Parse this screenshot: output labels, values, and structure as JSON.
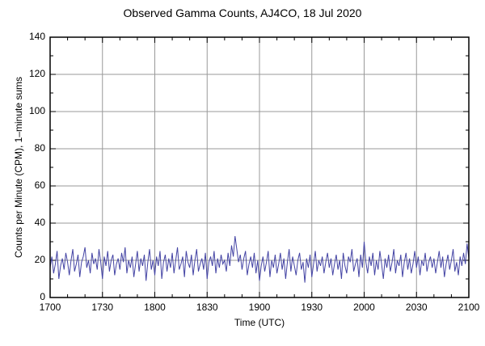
{
  "chart_data": {
    "type": "line",
    "title": "Observed Gamma Counts, AJ4CO, 18 Jul 2020",
    "xlabel": "Time (UTC)",
    "ylabel": "Counts per Minute (CPM), 1–minute sums",
    "xtick_labels": [
      "1700",
      "1730",
      "1800",
      "1830",
      "1900",
      "1930",
      "2000",
      "2030",
      "2100"
    ],
    "xtick_minutes": [
      0,
      30,
      60,
      90,
      120,
      150,
      180,
      210,
      240
    ],
    "ytick_values": [
      0,
      20,
      40,
      60,
      80,
      100,
      120,
      140
    ],
    "ylim": [
      0,
      140
    ],
    "xlim_minutes": [
      0,
      240
    ],
    "x_step_minutes": 1,
    "grid": true,
    "legend": "none",
    "line_color": "#4444a4",
    "grid_color": "#999999",
    "axis_color": "#000000",
    "values": [
      16,
      22,
      13,
      18,
      25,
      10,
      17,
      21,
      15,
      24,
      19,
      12,
      20,
      26,
      14,
      18,
      23,
      11,
      19,
      22,
      27,
      16,
      20,
      13,
      24,
      18,
      21,
      15,
      26,
      19,
      10,
      22,
      17,
      25,
      14,
      20,
      23,
      12,
      18,
      21,
      15,
      24,
      19,
      27,
      13,
      20,
      16,
      22,
      11,
      18,
      25,
      14,
      21,
      17,
      23,
      9,
      19,
      26,
      15,
      20,
      12,
      22,
      17,
      25,
      10,
      19,
      23,
      14,
      21,
      16,
      24,
      13,
      20,
      27,
      15,
      18,
      22,
      11,
      25,
      19,
      16,
      23,
      12,
      20,
      26,
      14,
      18,
      21,
      15,
      24,
      10,
      19,
      22,
      17,
      25,
      13,
      21,
      16,
      23,
      18,
      20,
      14,
      24,
      17,
      28,
      22,
      33,
      26,
      19,
      23,
      15,
      21,
      25,
      12,
      18,
      22,
      16,
      24,
      13,
      20,
      9,
      17,
      22,
      14,
      19,
      25,
      11,
      20,
      16,
      23,
      13,
      18,
      24,
      15,
      21,
      10,
      19,
      26,
      14,
      22,
      17,
      12,
      20,
      24,
      15,
      19,
      8,
      21,
      16,
      23,
      11,
      18,
      25,
      14,
      20,
      17,
      22,
      13,
      19,
      24,
      16,
      21,
      12,
      18,
      23,
      15,
      20,
      10,
      24,
      17,
      13,
      22,
      19,
      26,
      14,
      18,
      21,
      11,
      23,
      16,
      30,
      19,
      13,
      22,
      17,
      24,
      12,
      20,
      15,
      25,
      18,
      10,
      21,
      16,
      23,
      14,
      19,
      26,
      13,
      20,
      17,
      23,
      11,
      19,
      24,
      15,
      21,
      13,
      18,
      25,
      16,
      22,
      12,
      20,
      17,
      24,
      14,
      19,
      22,
      16,
      21,
      13,
      19,
      25,
      16,
      22,
      11,
      18,
      23,
      15,
      20,
      26,
      14,
      19,
      12,
      22,
      17,
      24,
      18,
      29,
      21
    ]
  }
}
